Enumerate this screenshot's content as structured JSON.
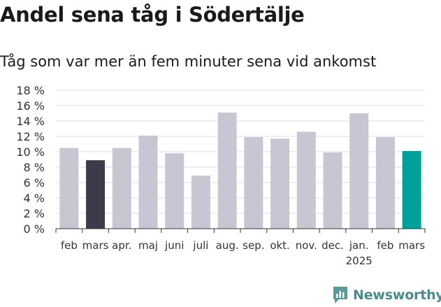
{
  "title": "Andel sena tåg i Södertälje",
  "subtitle": "Tåg som var mer än fem minuter sena vid ankomst",
  "brand": {
    "name": "Newsworthy",
    "icon": "newsworthy-logo-icon"
  },
  "colors": {
    "default_bar": "#c8c6d2",
    "highlight_bar": "#3d3b4b",
    "latest_bar": "#00a19a",
    "grid": "#dcdcdc",
    "axis": "#333333",
    "text": "#333333"
  },
  "chart_data": {
    "type": "bar",
    "title": "Andel sena tåg i Södertälje",
    "subtitle": "Tåg som var mer än fem minuter sena vid ankomst",
    "categories": [
      "feb",
      "mars",
      "apr.",
      "maj",
      "juni",
      "juli",
      "aug.",
      "sep.",
      "okt.",
      "nov.",
      "dec.",
      "jan.",
      "feb",
      "mars"
    ],
    "year_labels": [
      {
        "index": 11,
        "label": "2025"
      }
    ],
    "values": [
      10.5,
      8.9,
      10.5,
      12.1,
      9.8,
      6.9,
      15.1,
      11.9,
      11.7,
      12.6,
      9.9,
      15.0,
      11.9,
      10.1
    ],
    "bar_styles": [
      "default",
      "highlight",
      "default",
      "default",
      "default",
      "default",
      "default",
      "default",
      "default",
      "default",
      "default",
      "default",
      "default",
      "latest"
    ],
    "unit": "%",
    "ylim": [
      0,
      18
    ],
    "yticks": [
      0,
      2,
      4,
      6,
      8,
      10,
      12,
      14,
      16,
      18
    ],
    "ytick_labels": [
      "0 %",
      "2 %",
      "4 %",
      "6 %",
      "8 %",
      "10 %",
      "12 %",
      "14 %",
      "16 %",
      "18 %"
    ],
    "grid": true,
    "legend": "none"
  }
}
